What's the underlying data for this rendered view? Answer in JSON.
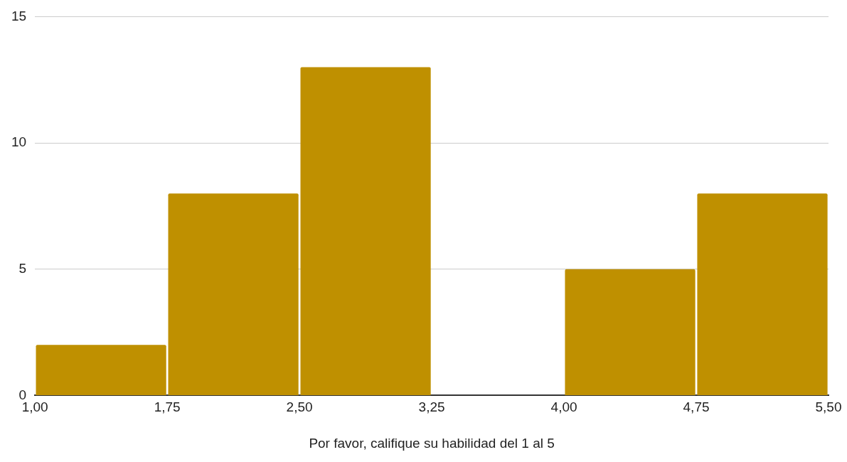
{
  "chart_data": {
    "type": "histogram",
    "xlabel": "Por favor, califique su habilidad del 1 al 5",
    "bins": [
      1,
      1.75,
      2.5,
      3.25,
      4,
      4.75,
      5.5
    ],
    "values": [
      2,
      8,
      13,
      0,
      5,
      8
    ],
    "color": "#bf9000",
    "xlim": [
      1,
      5.5
    ],
    "xticks": [
      {
        "value": 1,
        "label": "1,00"
      },
      {
        "value": 1.75,
        "label": "1,75"
      },
      {
        "value": 2.5,
        "label": "2,50"
      },
      {
        "value": 3.25,
        "label": "3,25"
      },
      {
        "value": 4,
        "label": "4,00"
      },
      {
        "value": 4.75,
        "label": "4,75"
      },
      {
        "value": 5.5,
        "label": "5,50"
      }
    ],
    "ylim": [
      0,
      15
    ],
    "yticks": [
      0,
      5,
      10,
      15
    ],
    "grid": "y",
    "legend": false
  }
}
